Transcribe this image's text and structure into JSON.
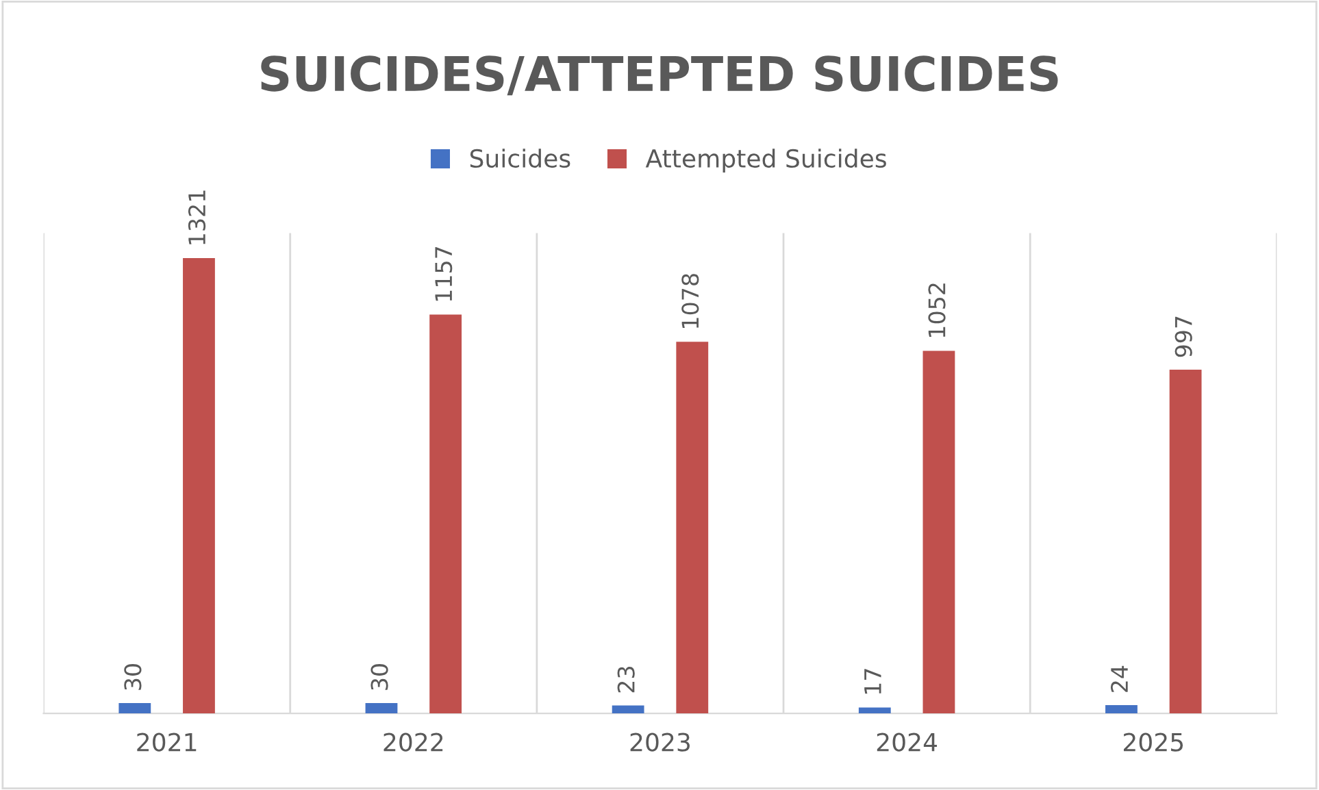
{
  "chart_data": {
    "type": "bar",
    "title": "SUICIDES/ATTEPTED SUICIDES",
    "categories": [
      "2021",
      "2022",
      "2023",
      "2024",
      "2025"
    ],
    "series": [
      {
        "name": "Suicides",
        "color": "#4472c4",
        "values": [
          30,
          30,
          23,
          17,
          24
        ]
      },
      {
        "name": "Attempted Suicides",
        "color": "#c0504d",
        "values": [
          1321,
          1157,
          1078,
          1052,
          997
        ]
      }
    ],
    "data_labels": true,
    "grid": "x",
    "legend": "top"
  }
}
